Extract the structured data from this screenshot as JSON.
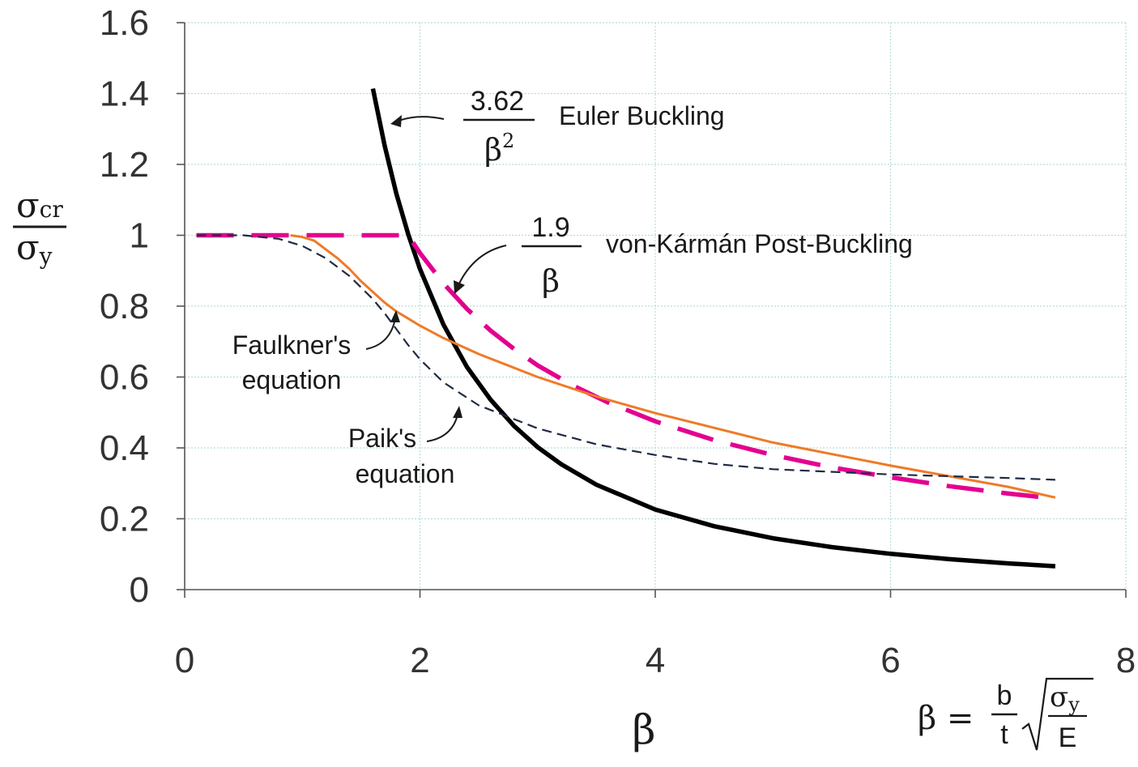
{
  "chart_data": {
    "type": "line",
    "xlim": [
      0,
      8
    ],
    "ylim": [
      0,
      1.6
    ],
    "x_ticks": [
      "0",
      "2",
      "4",
      "6",
      "8"
    ],
    "y_ticks": [
      "0",
      "0.2",
      "0.4",
      "0.6",
      "0.8",
      "1",
      "1.2",
      "1.4",
      "1.6"
    ],
    "grid": true,
    "xlabel": "β",
    "ylabel": {
      "num": "σ",
      "num_sub": "cr",
      "den": "σ",
      "den_sub": "y"
    },
    "beta_definition": {
      "lhs": "β =",
      "num": "b",
      "den": "t",
      "root_num": "σ",
      "root_num_sub": "y",
      "root_den": "E"
    },
    "series": [
      {
        "name": "Euler Buckling",
        "color": "#000000",
        "style": "solid-thick",
        "formula": {
          "num": "3.62",
          "den": "β",
          "den_sup": "2"
        },
        "x": [
          1.6,
          1.7,
          1.8,
          1.9,
          2.0,
          2.2,
          2.4,
          2.6,
          2.8,
          3.0,
          3.2,
          3.5,
          4.0,
          4.5,
          5.0,
          5.5,
          6.0,
          6.5,
          7.0,
          7.4
        ],
        "y": [
          1.414,
          1.253,
          1.117,
          1.003,
          0.905,
          0.748,
          0.628,
          0.536,
          0.462,
          0.402,
          0.354,
          0.296,
          0.226,
          0.179,
          0.145,
          0.12,
          0.101,
          0.086,
          0.074,
          0.066
        ]
      },
      {
        "name": "von-Kármán Post-Buckling",
        "color": "#e3008f",
        "style": "dashed-thick",
        "formula": {
          "num": "1.9",
          "den": "β"
        },
        "x": [
          0.1,
          1.0,
          1.9,
          2.0,
          2.2,
          2.4,
          2.6,
          2.8,
          3.0,
          3.3,
          3.6,
          4.0,
          4.5,
          5.0,
          5.5,
          6.0,
          6.5,
          7.0,
          7.4
        ],
        "y": [
          1.0,
          1.0,
          1.0,
          0.95,
          0.864,
          0.792,
          0.731,
          0.679,
          0.633,
          0.576,
          0.528,
          0.475,
          0.422,
          0.38,
          0.345,
          0.317,
          0.292,
          0.271,
          0.257
        ]
      },
      {
        "name": "Faulkner's equation",
        "color": "#ee7b28",
        "style": "solid",
        "label_lines": [
          "Faulkner's",
          "equation"
        ],
        "x": [
          0.9,
          1.0,
          1.1,
          1.2,
          1.3,
          1.4,
          1.5,
          1.6,
          1.7,
          1.8,
          1.9,
          2.0,
          2.2,
          2.5,
          3.0,
          3.5,
          4.0,
          5.0,
          6.0,
          7.0,
          7.4
        ],
        "y": [
          1.0,
          0.995,
          0.985,
          0.96,
          0.935,
          0.905,
          0.87,
          0.84,
          0.81,
          0.785,
          0.765,
          0.745,
          0.71,
          0.665,
          0.6,
          0.545,
          0.498,
          0.415,
          0.35,
          0.29,
          0.26
        ]
      },
      {
        "name": "Paik's equation",
        "color": "#1f2a44",
        "style": "dashed-thin",
        "label_lines": [
          "Paik's",
          "equation"
        ],
        "x": [
          0.1,
          0.5,
          0.8,
          1.0,
          1.2,
          1.4,
          1.6,
          1.7,
          1.8,
          1.9,
          2.0,
          2.2,
          2.5,
          3.0,
          3.5,
          4.0,
          4.5,
          5.0,
          6.0,
          7.0,
          7.4
        ],
        "y": [
          1.0,
          1.0,
          0.99,
          0.97,
          0.935,
          0.885,
          0.82,
          0.78,
          0.735,
          0.69,
          0.65,
          0.585,
          0.52,
          0.455,
          0.41,
          0.38,
          0.355,
          0.34,
          0.325,
          0.315,
          0.31
        ]
      }
    ]
  }
}
